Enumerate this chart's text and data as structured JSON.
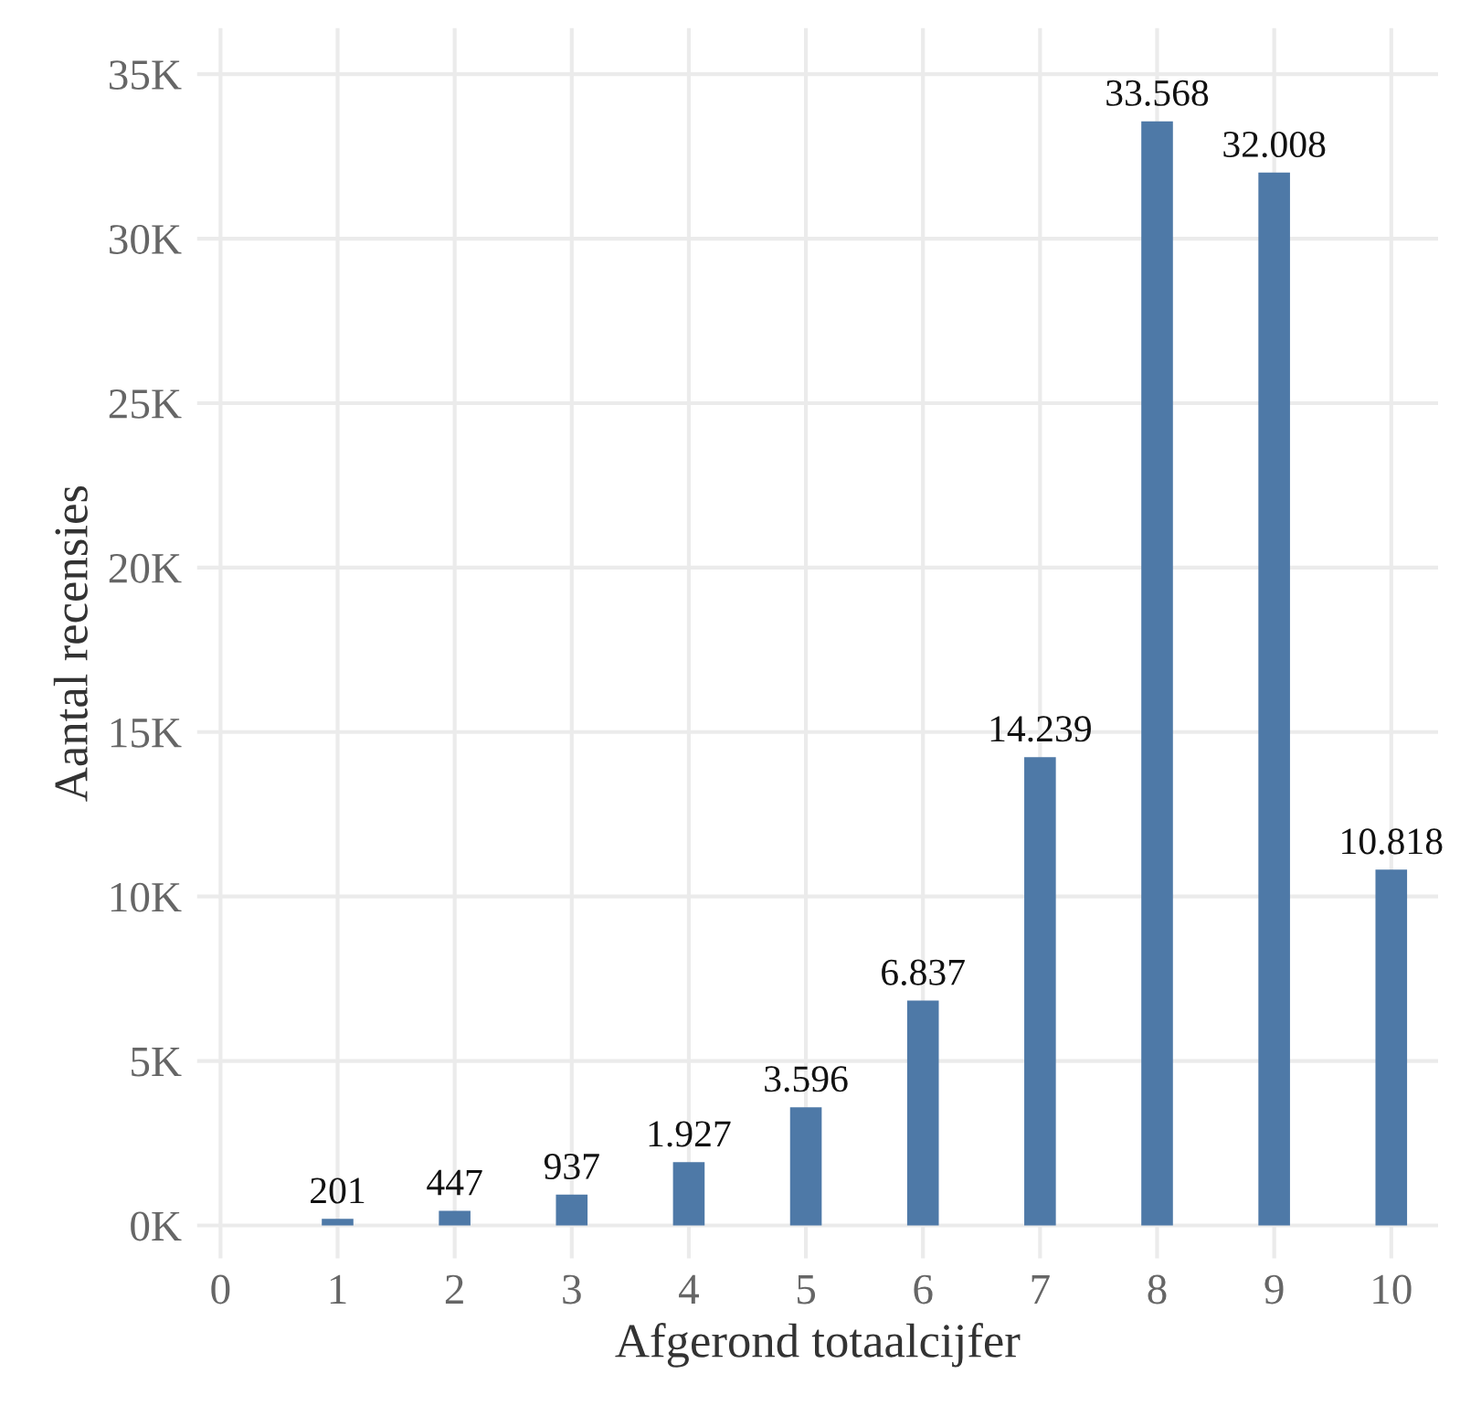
{
  "chart_data": {
    "type": "bar",
    "xlabel": "Afgerond totaalcijfer",
    "ylabel": "Aantal recensies",
    "x": [
      1,
      2,
      3,
      4,
      5,
      6,
      7,
      8,
      9,
      10
    ],
    "values": [
      201,
      447,
      937,
      1927,
      3596,
      6837,
      14239,
      33568,
      32008,
      10818
    ],
    "value_labels": [
      "201",
      "447",
      "937",
      "1.927",
      "3.596",
      "6.837",
      "14.239",
      "33.568",
      "32.008",
      "10.818"
    ],
    "color": "#4e79a7",
    "xlim": [
      -0.2,
      10.4
    ],
    "xticks": [
      0,
      1,
      2,
      3,
      4,
      5,
      6,
      7,
      8,
      9,
      10
    ],
    "ylim": [
      -1000,
      36400
    ],
    "yticks": [
      {
        "value": 0,
        "label": "0K"
      },
      {
        "value": 5000,
        "label": "5K"
      },
      {
        "value": 10000,
        "label": "10K"
      },
      {
        "value": 15000,
        "label": "15K"
      },
      {
        "value": 20000,
        "label": "20K"
      },
      {
        "value": 25000,
        "label": "25K"
      },
      {
        "value": 30000,
        "label": "30K"
      },
      {
        "value": 35000,
        "label": "35K"
      }
    ],
    "grid": true
  }
}
